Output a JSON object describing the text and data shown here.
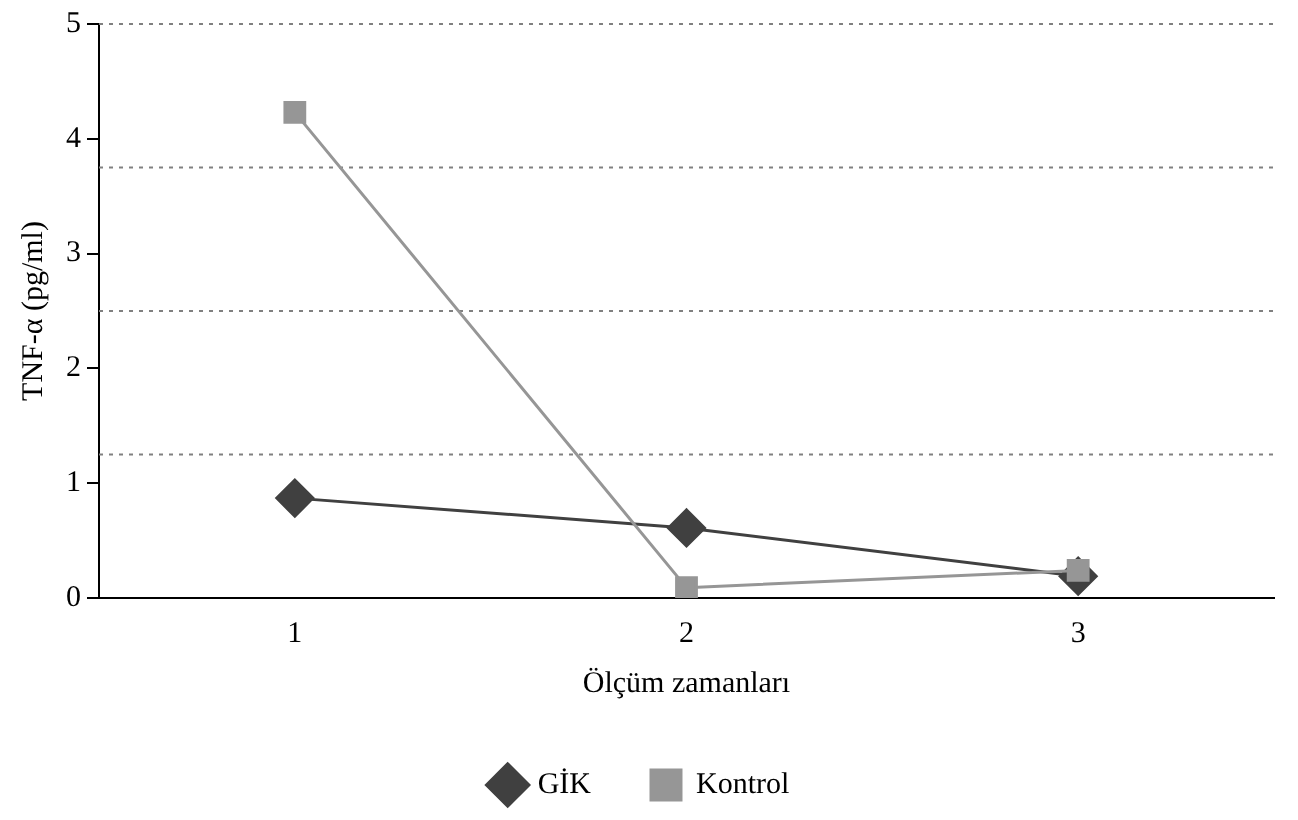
{
  "chart_data": {
    "type": "line",
    "xlabel": "Ölçüm zamanları",
    "ylabel": "TNF-α (pg/ml)",
    "categories": [
      "1",
      "2",
      "3"
    ],
    "series": [
      {
        "name": "GİK",
        "color": "#404040",
        "marker": "diamond",
        "values": [
          0.87,
          0.61,
          0.19
        ]
      },
      {
        "name": "Kontrol",
        "color": "#969696",
        "marker": "square",
        "values": [
          4.23,
          0.09,
          0.24
        ]
      }
    ],
    "ylim": [
      0,
      5
    ],
    "yticks": [
      0,
      1,
      2,
      3,
      4,
      5
    ],
    "grid": false,
    "legend": "bottom",
    "line_style": "solid",
    "ref_lines": [
      {
        "axis": "y",
        "value": 1.25,
        "color": "#808080",
        "line_style": "dotted"
      },
      {
        "axis": "y",
        "value": 2.5,
        "color": "#808080",
        "line_style": "dotted"
      },
      {
        "axis": "y",
        "value": 3.75,
        "color": "#808080",
        "line_style": "dotted"
      },
      {
        "axis": "y",
        "value": 5,
        "color": "#808080",
        "line_style": "dotted"
      }
    ]
  }
}
